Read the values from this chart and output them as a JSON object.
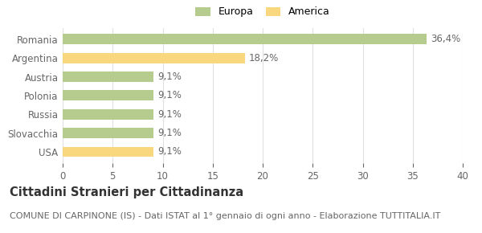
{
  "categories": [
    "USA",
    "Slovacchia",
    "Russia",
    "Polonia",
    "Austria",
    "Argentina",
    "Romania"
  ],
  "values": [
    9.1,
    9.1,
    9.1,
    9.1,
    9.1,
    18.2,
    36.4
  ],
  "colors": [
    "#f9d77e",
    "#b5cc8e",
    "#b5cc8e",
    "#b5cc8e",
    "#b5cc8e",
    "#f9d77e",
    "#b5cc8e"
  ],
  "labels": [
    "9,1%",
    "9,1%",
    "9,1%",
    "9,1%",
    "9,1%",
    "18,2%",
    "36,4%"
  ],
  "legend_items": [
    {
      "label": "Europa",
      "color": "#b5cc8e"
    },
    {
      "label": "America",
      "color": "#f9d77e"
    }
  ],
  "xlim": [
    0,
    40
  ],
  "xticks": [
    0,
    5,
    10,
    15,
    20,
    25,
    30,
    35,
    40
  ],
  "title_bold": "Cittadini Stranieri per Cittadinanza",
  "subtitle": "COMUNE DI CARPINONE (IS) - Dati ISTAT al 1° gennaio di ogni anno - Elaborazione TUTTITALIA.IT",
  "background_color": "#ffffff",
  "grid_color": "#e0e0e0",
  "bar_edge_color": "none",
  "label_fontsize": 8.5,
  "tick_fontsize": 8.5,
  "title_fontsize": 10.5,
  "subtitle_fontsize": 8
}
